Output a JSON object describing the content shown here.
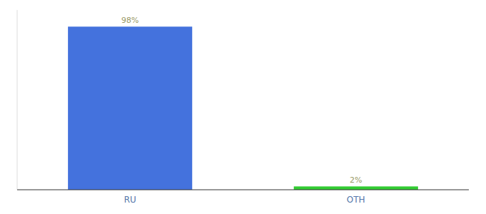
{
  "chart_data": {
    "type": "bar",
    "categories": [
      "RU",
      "OTH"
    ],
    "values": [
      98,
      2
    ],
    "value_labels": [
      "98%",
      "2%"
    ],
    "colors": [
      "#4472DD",
      "#33CC33"
    ],
    "ylim": [
      0,
      108
    ],
    "data_labels": true,
    "tick_labels": "x"
  }
}
